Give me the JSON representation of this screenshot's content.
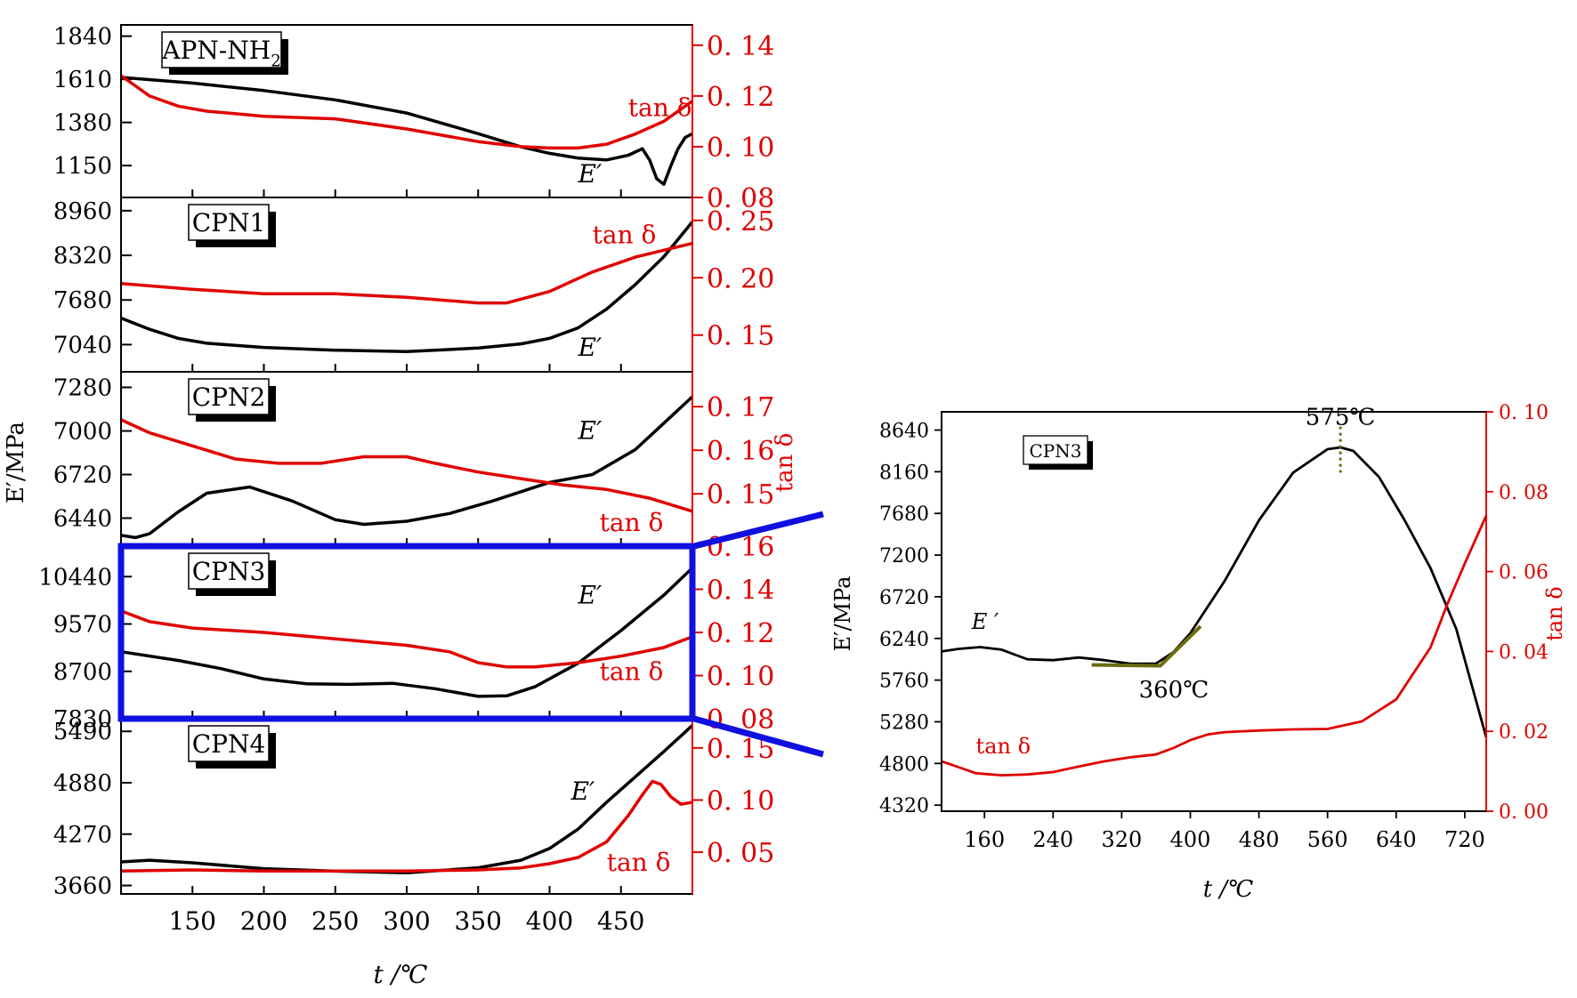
{
  "figure": {
    "colors": {
      "e_prime": "#000000",
      "tan_delta": "#e00000",
      "highlight": "#1010e0",
      "tangent": "#6b6b10"
    }
  },
  "chart_data": [
    {
      "type": "line",
      "panel": "APN-NH2",
      "title": "APN-NH2",
      "title_base": "APN-NH",
      "title_sub": "2",
      "xlim": [
        100,
        500
      ],
      "ylim": [
        980,
        1900
      ],
      "ylabel_ticks": [
        "1840",
        "1610",
        "1380",
        "1150"
      ],
      "y_ticks": [
        1840,
        1610,
        1380,
        1150
      ],
      "y2lim": [
        0.08,
        0.148
      ],
      "y2label_ticks": [
        "0. 14",
        "0. 12",
        "0. 10",
        "0. 08"
      ],
      "y2_ticks": [
        0.14,
        0.12,
        0.1,
        0.08
      ],
      "series": [
        {
          "name": "E'",
          "axis": "left",
          "label": "E′",
          "label_at": [
            420,
            1060
          ],
          "x": [
            100,
            150,
            200,
            250,
            300,
            350,
            380,
            400,
            420,
            440,
            455,
            465,
            470,
            475,
            480,
            485,
            490,
            495,
            500
          ],
          "y": [
            1620,
            1590,
            1550,
            1500,
            1430,
            1320,
            1250,
            1215,
            1190,
            1180,
            1205,
            1240,
            1180,
            1080,
            1050,
            1150,
            1240,
            1300,
            1320
          ]
        },
        {
          "name": "tan δ",
          "axis": "right",
          "label": "tan δ",
          "label_at": [
            455,
            0.112
          ],
          "x": [
            100,
            110,
            120,
            140,
            160,
            200,
            250,
            300,
            350,
            380,
            400,
            420,
            440,
            460,
            480,
            500
          ],
          "y": [
            0.128,
            0.124,
            0.12,
            0.116,
            0.114,
            0.112,
            0.111,
            0.107,
            0.102,
            0.1,
            0.0995,
            0.0995,
            0.101,
            0.105,
            0.11,
            0.118
          ]
        }
      ]
    },
    {
      "type": "line",
      "panel": "CPN1",
      "title": "CPN1",
      "xlim": [
        100,
        500
      ],
      "ylim": [
        6650,
        9150
      ],
      "ylabel_ticks": [
        "8960",
        "8320",
        "7680",
        "7040"
      ],
      "y_ticks": [
        8960,
        8320,
        7680,
        7040
      ],
      "y2lim": [
        0.118,
        0.27
      ],
      "y2label_ticks": [
        "0. 25",
        "0. 20",
        "0. 15"
      ],
      "y2_ticks": [
        0.25,
        0.2,
        0.15
      ],
      "series": [
        {
          "name": "E'",
          "axis": "left",
          "label": "E′",
          "label_at": [
            420,
            6880
          ],
          "x": [
            100,
            120,
            140,
            160,
            200,
            250,
            300,
            350,
            380,
            400,
            420,
            440,
            460,
            480,
            500
          ],
          "y": [
            7420,
            7260,
            7130,
            7060,
            7000,
            6960,
            6940,
            6990,
            7050,
            7130,
            7280,
            7550,
            7900,
            8300,
            8800
          ]
        },
        {
          "name": "tan δ",
          "axis": "right",
          "label": "tan δ",
          "label_at": [
            430,
            0.23
          ],
          "x": [
            100,
            150,
            200,
            250,
            300,
            350,
            370,
            400,
            430,
            460,
            480,
            500
          ],
          "y": [
            0.195,
            0.19,
            0.186,
            0.186,
            0.183,
            0.178,
            0.178,
            0.188,
            0.205,
            0.218,
            0.224,
            0.23
          ]
        }
      ]
    },
    {
      "type": "line",
      "panel": "CPN2",
      "title": "CPN2",
      "xlim": [
        100,
        500
      ],
      "ylim": [
        6260,
        7380
      ],
      "ylabel_ticks": [
        "7280",
        "7000",
        "6720",
        "6440"
      ],
      "y_ticks": [
        7280,
        7000,
        6720,
        6440
      ],
      "y2lim": [
        0.138,
        0.178
      ],
      "y2label_ticks": [
        "0. 17",
        "0. 16",
        "0. 15"
      ],
      "y2_ticks": [
        0.17,
        0.16,
        0.15
      ],
      "series": [
        {
          "name": "E'",
          "axis": "left",
          "label": "E′",
          "label_at": [
            420,
            6950
          ],
          "x": [
            100,
            110,
            120,
            140,
            160,
            190,
            220,
            250,
            270,
            300,
            330,
            360,
            400,
            430,
            460,
            480,
            500
          ],
          "y": [
            6330,
            6315,
            6340,
            6480,
            6600,
            6640,
            6550,
            6430,
            6400,
            6420,
            6470,
            6550,
            6670,
            6720,
            6880,
            7050,
            7220
          ]
        },
        {
          "name": "tan δ",
          "axis": "right",
          "label": "tan δ",
          "label_at": [
            435,
            0.1415
          ],
          "x": [
            100,
            120,
            150,
            180,
            210,
            240,
            270,
            300,
            320,
            350,
            380,
            410,
            440,
            470,
            500
          ],
          "y": [
            0.167,
            0.164,
            0.161,
            0.158,
            0.157,
            0.157,
            0.1585,
            0.1585,
            0.157,
            0.155,
            0.1535,
            0.152,
            0.151,
            0.149,
            0.146
          ]
        }
      ]
    },
    {
      "type": "line",
      "panel": "CPN3",
      "title": "CPN3",
      "xlim": [
        100,
        500
      ],
      "ylim": [
        7830,
        11000
      ],
      "ylabel_ticks": [
        "10440",
        "9570",
        "8700",
        "7830"
      ],
      "y_ticks": [
        10440,
        9570,
        8700,
        7830
      ],
      "y2lim": [
        0.08,
        0.16
      ],
      "y2label_ticks": [
        "0. 16",
        "0. 14",
        "0. 12",
        "0. 10",
        "0. 08"
      ],
      "y2_ticks": [
        0.16,
        0.14,
        0.12,
        0.1,
        0.08
      ],
      "series": [
        {
          "name": "E'",
          "axis": "left",
          "label": "E′",
          "label_at": [
            420,
            9950
          ],
          "x": [
            100,
            140,
            170,
            200,
            230,
            260,
            290,
            320,
            350,
            370,
            390,
            420,
            450,
            480,
            500
          ],
          "y": [
            9060,
            8900,
            8750,
            8560,
            8470,
            8460,
            8480,
            8380,
            8240,
            8250,
            8420,
            8850,
            9450,
            10100,
            10600
          ]
        },
        {
          "name": "tan δ",
          "axis": "right",
          "label": "tan δ",
          "label_at": [
            435,
            0.098
          ],
          "x": [
            100,
            120,
            150,
            200,
            250,
            300,
            330,
            350,
            370,
            390,
            420,
            450,
            480,
            500
          ],
          "y": [
            0.13,
            0.125,
            0.122,
            0.12,
            0.117,
            0.114,
            0.111,
            0.106,
            0.104,
            0.104,
            0.106,
            0.109,
            0.113,
            0.118
          ]
        }
      ]
    },
    {
      "type": "line",
      "panel": "CPN4",
      "title": "CPN4",
      "xlim": [
        100,
        500
      ],
      "ylim": [
        3560,
        5640
      ],
      "ylabel_ticks": [
        "5490",
        "4880",
        "4270",
        "3660"
      ],
      "y_ticks": [
        5490,
        4880,
        4270,
        3660
      ],
      "y2lim": [
        0.01,
        0.178
      ],
      "y2label_ticks": [
        "0. 15",
        "0. 10",
        "0. 05"
      ],
      "y2_ticks": [
        0.15,
        0.1,
        0.05
      ],
      "series": [
        {
          "name": "E'",
          "axis": "left",
          "label": "E′",
          "label_at": [
            415,
            4680
          ],
          "x": [
            100,
            120,
            150,
            200,
            250,
            300,
            350,
            380,
            400,
            420,
            440,
            460,
            480,
            500
          ],
          "y": [
            3940,
            3960,
            3930,
            3860,
            3830,
            3810,
            3870,
            3960,
            4100,
            4330,
            4650,
            4950,
            5250,
            5560
          ]
        },
        {
          "name": "tan δ",
          "axis": "right",
          "label": "tan δ",
          "label_at": [
            440,
            0.032
          ],
          "x": [
            100,
            150,
            200,
            250,
            300,
            350,
            380,
            400,
            420,
            440,
            455,
            465,
            472,
            478,
            485,
            492,
            500
          ],
          "y": [
            0.032,
            0.033,
            0.032,
            0.032,
            0.032,
            0.033,
            0.035,
            0.039,
            0.045,
            0.06,
            0.085,
            0.105,
            0.118,
            0.115,
            0.103,
            0.096,
            0.098
          ]
        }
      ]
    },
    {
      "type": "line",
      "panel": "CPN3-enlarged",
      "title": "CPN3",
      "xlim": [
        110,
        745
      ],
      "x_ticks": [
        160,
        240,
        320,
        400,
        480,
        560,
        640,
        720
      ],
      "xlabel_ticks": [
        "160",
        "240",
        "320",
        "400",
        "480",
        "560",
        "640",
        "720"
      ],
      "ylim": [
        4250,
        8850
      ],
      "ylabel_ticks": [
        "8640",
        "8160",
        "7680",
        "7200",
        "6720",
        "6240",
        "5760",
        "5280",
        "4800",
        "4320"
      ],
      "y_ticks": [
        8640,
        8160,
        7680,
        7200,
        6720,
        6240,
        5760,
        5280,
        4800,
        4320
      ],
      "y2lim": [
        0.0,
        0.1
      ],
      "y2label_ticks": [
        "0. 10",
        "0. 08",
        "0. 06",
        "0. 04",
        "0. 02",
        "0. 00"
      ],
      "y2_ticks": [
        0.1,
        0.08,
        0.06,
        0.04,
        0.02,
        0.0
      ],
      "xlabel": "t /℃",
      "ylabel": "E′/MPa",
      "y2label": "tan δ",
      "annotations": [
        {
          "text": "575℃",
          "x": 575,
          "y": 8440
        },
        {
          "text": "360℃",
          "x": 360,
          "y": 5920
        }
      ],
      "series": [
        {
          "name": "E'",
          "axis": "left",
          "label": "E ′",
          "label_at": [
            145,
            6350
          ],
          "x": [
            110,
            130,
            155,
            180,
            210,
            240,
            270,
            300,
            330,
            360,
            380,
            400,
            440,
            480,
            520,
            560,
            575,
            590,
            620,
            650,
            680,
            710,
            745
          ],
          "y": [
            6090,
            6120,
            6140,
            6110,
            6000,
            5990,
            6020,
            5990,
            5950,
            5950,
            6080,
            6300,
            6900,
            7600,
            8150,
            8420,
            8440,
            8400,
            8100,
            7600,
            7050,
            6350,
            5100
          ]
        },
        {
          "name": "tan δ",
          "axis": "right",
          "label": "tan δ",
          "label_at": [
            150,
            0.0145
          ],
          "x": [
            110,
            130,
            150,
            180,
            210,
            240,
            270,
            300,
            330,
            360,
            380,
            400,
            420,
            440,
            480,
            520,
            560,
            600,
            640,
            680,
            700,
            720,
            745
          ],
          "y": [
            0.0125,
            0.011,
            0.0095,
            0.009,
            0.0092,
            0.0098,
            0.0112,
            0.0125,
            0.0135,
            0.0142,
            0.0158,
            0.0178,
            0.0192,
            0.0198,
            0.0202,
            0.0205,
            0.0206,
            0.0225,
            0.028,
            0.041,
            0.052,
            0.062,
            0.074
          ]
        }
      ]
    }
  ],
  "left_axes": {
    "xlabel": "t /℃",
    "ylabel": "E′/MPa",
    "y2label": "tan δ",
    "x_ticks": [
      150,
      200,
      250,
      300,
      350,
      400,
      450
    ],
    "xlabel_ticks": [
      "150",
      "200",
      "250",
      "300",
      "350",
      "400",
      "450"
    ]
  }
}
